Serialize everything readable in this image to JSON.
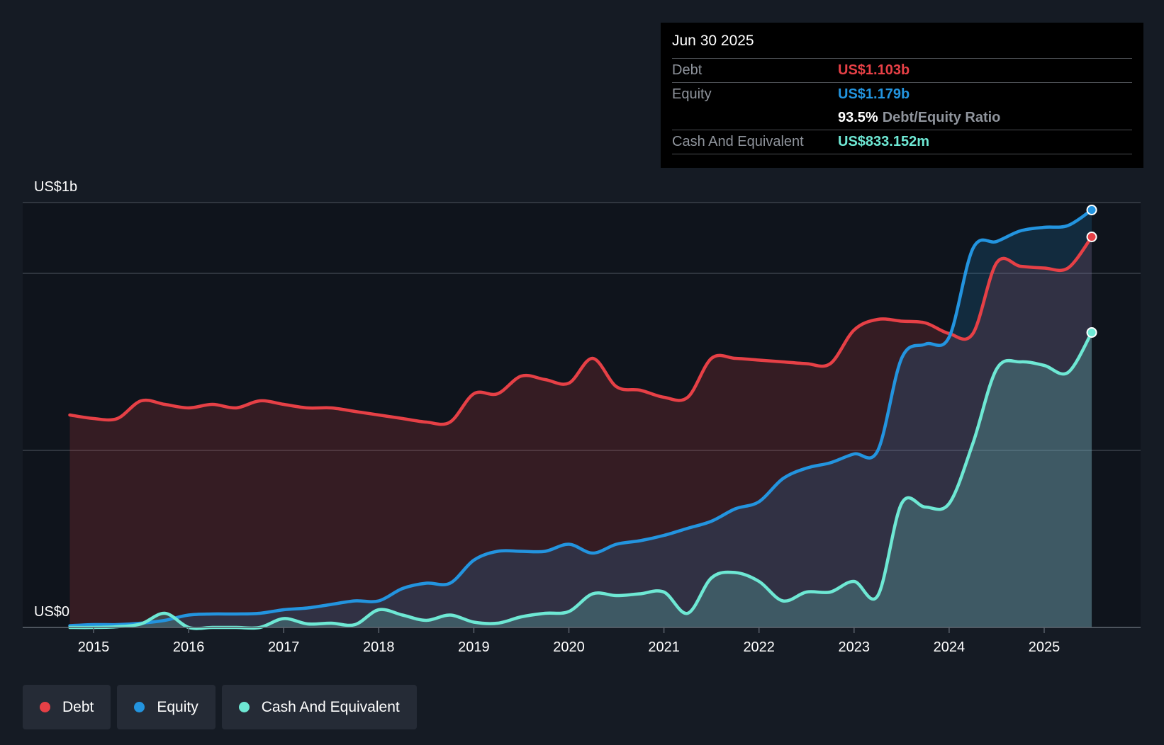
{
  "colors": {
    "background": "#151b24",
    "plot_background": "#0f141c",
    "debt": "#e64046",
    "equity": "#2394df",
    "cash": "#6ee8d4",
    "grid": "#3a4049",
    "axis_text": "#ffffff"
  },
  "tooltip": {
    "date": "Jun 30 2025",
    "debt_label": "Debt",
    "debt_value": "US$1.103b",
    "equity_label": "Equity",
    "equity_value": "US$1.179b",
    "ratio_value": "93.5%",
    "ratio_label": "Debt/Equity Ratio",
    "cash_label": "Cash And Equivalent",
    "cash_value": "US$833.152m"
  },
  "legend": [
    {
      "label": "Debt",
      "color": "#e64046"
    },
    {
      "label": "Equity",
      "color": "#2394df"
    },
    {
      "label": "Cash And Equivalent",
      "color": "#6ee8d4"
    }
  ],
  "chart_data": {
    "type": "area",
    "title": "",
    "xlabel": "",
    "ylabel": "",
    "x_range": [
      2014.5,
      2025.5
    ],
    "y_range": [
      0,
      1.2
    ],
    "y_label_top": "US$1b",
    "y_label_bottom": "US$0",
    "x_ticks": [
      {
        "value": 2015,
        "label": "2015"
      },
      {
        "value": 2016,
        "label": "2016"
      },
      {
        "value": 2017,
        "label": "2017"
      },
      {
        "value": 2018,
        "label": "2018"
      },
      {
        "value": 2019,
        "label": "2019"
      },
      {
        "value": 2020,
        "label": "2020"
      },
      {
        "value": 2021,
        "label": "2021"
      },
      {
        "value": 2022,
        "label": "2022"
      },
      {
        "value": 2023,
        "label": "2023"
      },
      {
        "value": 2024,
        "label": "2024"
      },
      {
        "value": 2025,
        "label": "2025"
      }
    ],
    "gridlines": [
      0,
      0.5,
      1.0,
      1.2
    ],
    "series": [
      {
        "name": "Debt",
        "color": "#e64046",
        "points": [
          [
            2014.75,
            0.6
          ],
          [
            2015.0,
            0.59
          ],
          [
            2015.25,
            0.59
          ],
          [
            2015.5,
            0.64
          ],
          [
            2015.75,
            0.63
          ],
          [
            2016.0,
            0.62
          ],
          [
            2016.25,
            0.63
          ],
          [
            2016.5,
            0.62
          ],
          [
            2016.75,
            0.64
          ],
          [
            2017.0,
            0.63
          ],
          [
            2017.25,
            0.62
          ],
          [
            2017.5,
            0.62
          ],
          [
            2017.75,
            0.61
          ],
          [
            2018.0,
            0.6
          ],
          [
            2018.25,
            0.59
          ],
          [
            2018.5,
            0.58
          ],
          [
            2018.75,
            0.58
          ],
          [
            2019.0,
            0.66
          ],
          [
            2019.25,
            0.66
          ],
          [
            2019.5,
            0.71
          ],
          [
            2019.75,
            0.7
          ],
          [
            2020.0,
            0.69
          ],
          [
            2020.25,
            0.76
          ],
          [
            2020.5,
            0.68
          ],
          [
            2020.75,
            0.67
          ],
          [
            2021.0,
            0.65
          ],
          [
            2021.25,
            0.65
          ],
          [
            2021.5,
            0.76
          ],
          [
            2021.75,
            0.76
          ],
          [
            2022.0,
            0.755
          ],
          [
            2022.25,
            0.75
          ],
          [
            2022.5,
            0.745
          ],
          [
            2022.75,
            0.745
          ],
          [
            2023.0,
            0.84
          ],
          [
            2023.25,
            0.87
          ],
          [
            2023.5,
            0.865
          ],
          [
            2023.75,
            0.86
          ],
          [
            2024.0,
            0.83
          ],
          [
            2024.25,
            0.83
          ],
          [
            2024.5,
            1.03
          ],
          [
            2024.75,
            1.02
          ],
          [
            2025.0,
            1.015
          ],
          [
            2025.25,
            1.015
          ],
          [
            2025.5,
            1.103
          ]
        ]
      },
      {
        "name": "Equity",
        "color": "#2394df",
        "points": [
          [
            2014.75,
            0.005
          ],
          [
            2015.0,
            0.008
          ],
          [
            2015.25,
            0.008
          ],
          [
            2015.5,
            0.012
          ],
          [
            2015.75,
            0.02
          ],
          [
            2016.0,
            0.035
          ],
          [
            2016.25,
            0.038
          ],
          [
            2016.5,
            0.038
          ],
          [
            2016.75,
            0.04
          ],
          [
            2017.0,
            0.05
          ],
          [
            2017.25,
            0.055
          ],
          [
            2017.5,
            0.065
          ],
          [
            2017.75,
            0.075
          ],
          [
            2018.0,
            0.075
          ],
          [
            2018.25,
            0.11
          ],
          [
            2018.5,
            0.125
          ],
          [
            2018.75,
            0.125
          ],
          [
            2019.0,
            0.19
          ],
          [
            2019.25,
            0.215
          ],
          [
            2019.5,
            0.215
          ],
          [
            2019.75,
            0.215
          ],
          [
            2020.0,
            0.235
          ],
          [
            2020.25,
            0.21
          ],
          [
            2020.5,
            0.235
          ],
          [
            2020.75,
            0.245
          ],
          [
            2021.0,
            0.26
          ],
          [
            2021.25,
            0.28
          ],
          [
            2021.5,
            0.3
          ],
          [
            2021.75,
            0.335
          ],
          [
            2022.0,
            0.355
          ],
          [
            2022.25,
            0.42
          ],
          [
            2022.5,
            0.45
          ],
          [
            2022.75,
            0.465
          ],
          [
            2023.0,
            0.49
          ],
          [
            2023.25,
            0.5
          ],
          [
            2023.5,
            0.76
          ],
          [
            2023.75,
            0.8
          ],
          [
            2024.0,
            0.82
          ],
          [
            2024.25,
            1.07
          ],
          [
            2024.5,
            1.09
          ],
          [
            2024.75,
            1.12
          ],
          [
            2025.0,
            1.13
          ],
          [
            2025.25,
            1.135
          ],
          [
            2025.5,
            1.179
          ]
        ]
      },
      {
        "name": "Cash And Equivalent",
        "color": "#6ee8d4",
        "points": [
          [
            2014.75,
            0.0
          ],
          [
            2015.0,
            0.0
          ],
          [
            2015.25,
            0.002
          ],
          [
            2015.5,
            0.01
          ],
          [
            2015.75,
            0.04
          ],
          [
            2016.0,
            0.0
          ],
          [
            2016.25,
            0.0
          ],
          [
            2016.5,
            0.0
          ],
          [
            2016.75,
            0.0
          ],
          [
            2017.0,
            0.025
          ],
          [
            2017.25,
            0.01
          ],
          [
            2017.5,
            0.012
          ],
          [
            2017.75,
            0.008
          ],
          [
            2018.0,
            0.05
          ],
          [
            2018.25,
            0.035
          ],
          [
            2018.5,
            0.02
          ],
          [
            2018.75,
            0.035
          ],
          [
            2019.0,
            0.015
          ],
          [
            2019.25,
            0.012
          ],
          [
            2019.5,
            0.03
          ],
          [
            2019.75,
            0.04
          ],
          [
            2020.0,
            0.045
          ],
          [
            2020.25,
            0.095
          ],
          [
            2020.5,
            0.09
          ],
          [
            2020.75,
            0.095
          ],
          [
            2021.0,
            0.1
          ],
          [
            2021.25,
            0.04
          ],
          [
            2021.5,
            0.14
          ],
          [
            2021.75,
            0.155
          ],
          [
            2022.0,
            0.13
          ],
          [
            2022.25,
            0.075
          ],
          [
            2022.5,
            0.1
          ],
          [
            2022.75,
            0.1
          ],
          [
            2023.0,
            0.13
          ],
          [
            2023.25,
            0.09
          ],
          [
            2023.5,
            0.35
          ],
          [
            2023.75,
            0.34
          ],
          [
            2024.0,
            0.35
          ],
          [
            2024.25,
            0.52
          ],
          [
            2024.5,
            0.73
          ],
          [
            2024.75,
            0.75
          ],
          [
            2025.0,
            0.74
          ],
          [
            2025.25,
            0.72
          ],
          [
            2025.5,
            0.833
          ]
        ]
      }
    ]
  }
}
